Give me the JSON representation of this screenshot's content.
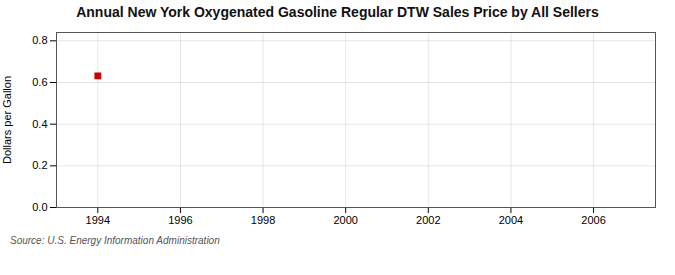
{
  "chart_data": {
    "type": "scatter",
    "title": "Annual New York Oxygenated Gasoline Regular DTW Sales Price by All Sellers",
    "ylabel": "Dollars per Gallon",
    "source": "Source: U.S. Energy Information Administration",
    "x": [
      1994
    ],
    "values": [
      0.632
    ],
    "color": "#cc0000",
    "marker": "square",
    "xlim": [
      1993.0,
      2007.5
    ],
    "ylim": [
      0.0,
      0.84
    ],
    "xticks": [
      1994,
      1996,
      1998,
      2000,
      2002,
      2004,
      2006
    ],
    "yticks": [
      {
        "value": 0.0,
        "label": "0.0"
      },
      0.2,
      0.4,
      0.6,
      0.8
    ],
    "grid": true
  }
}
